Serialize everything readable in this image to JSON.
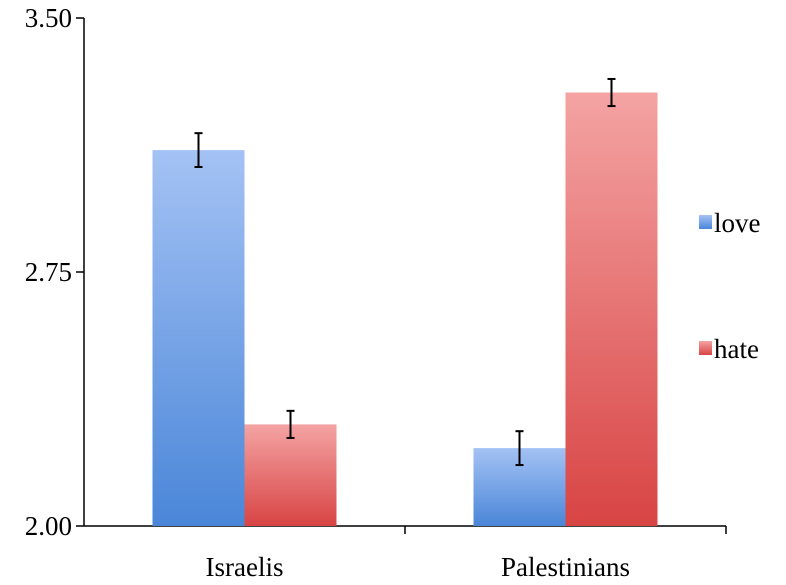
{
  "chart_data": {
    "type": "bar",
    "title": "",
    "xlabel": "",
    "ylabel": "",
    "categories": [
      "Israelis",
      "Palestinians"
    ],
    "series": [
      {
        "name": "love",
        "values": [
          3.11,
          2.23
        ],
        "errors": [
          0.05,
          0.05
        ],
        "color_top": "#a4c2f4",
        "color_bottom": "#4a86d8"
      },
      {
        "name": "hate",
        "values": [
          2.3,
          3.28
        ],
        "errors": [
          0.04,
          0.04
        ],
        "color_top": "#f4a3a3",
        "color_bottom": "#d84444"
      }
    ],
    "ylim": [
      2.0,
      3.5
    ],
    "yticks": [
      "2.00",
      "2.75",
      "3.50"
    ],
    "ytick_values": [
      2.0,
      2.75,
      3.5
    ],
    "grid": false,
    "legend_position": "right"
  }
}
